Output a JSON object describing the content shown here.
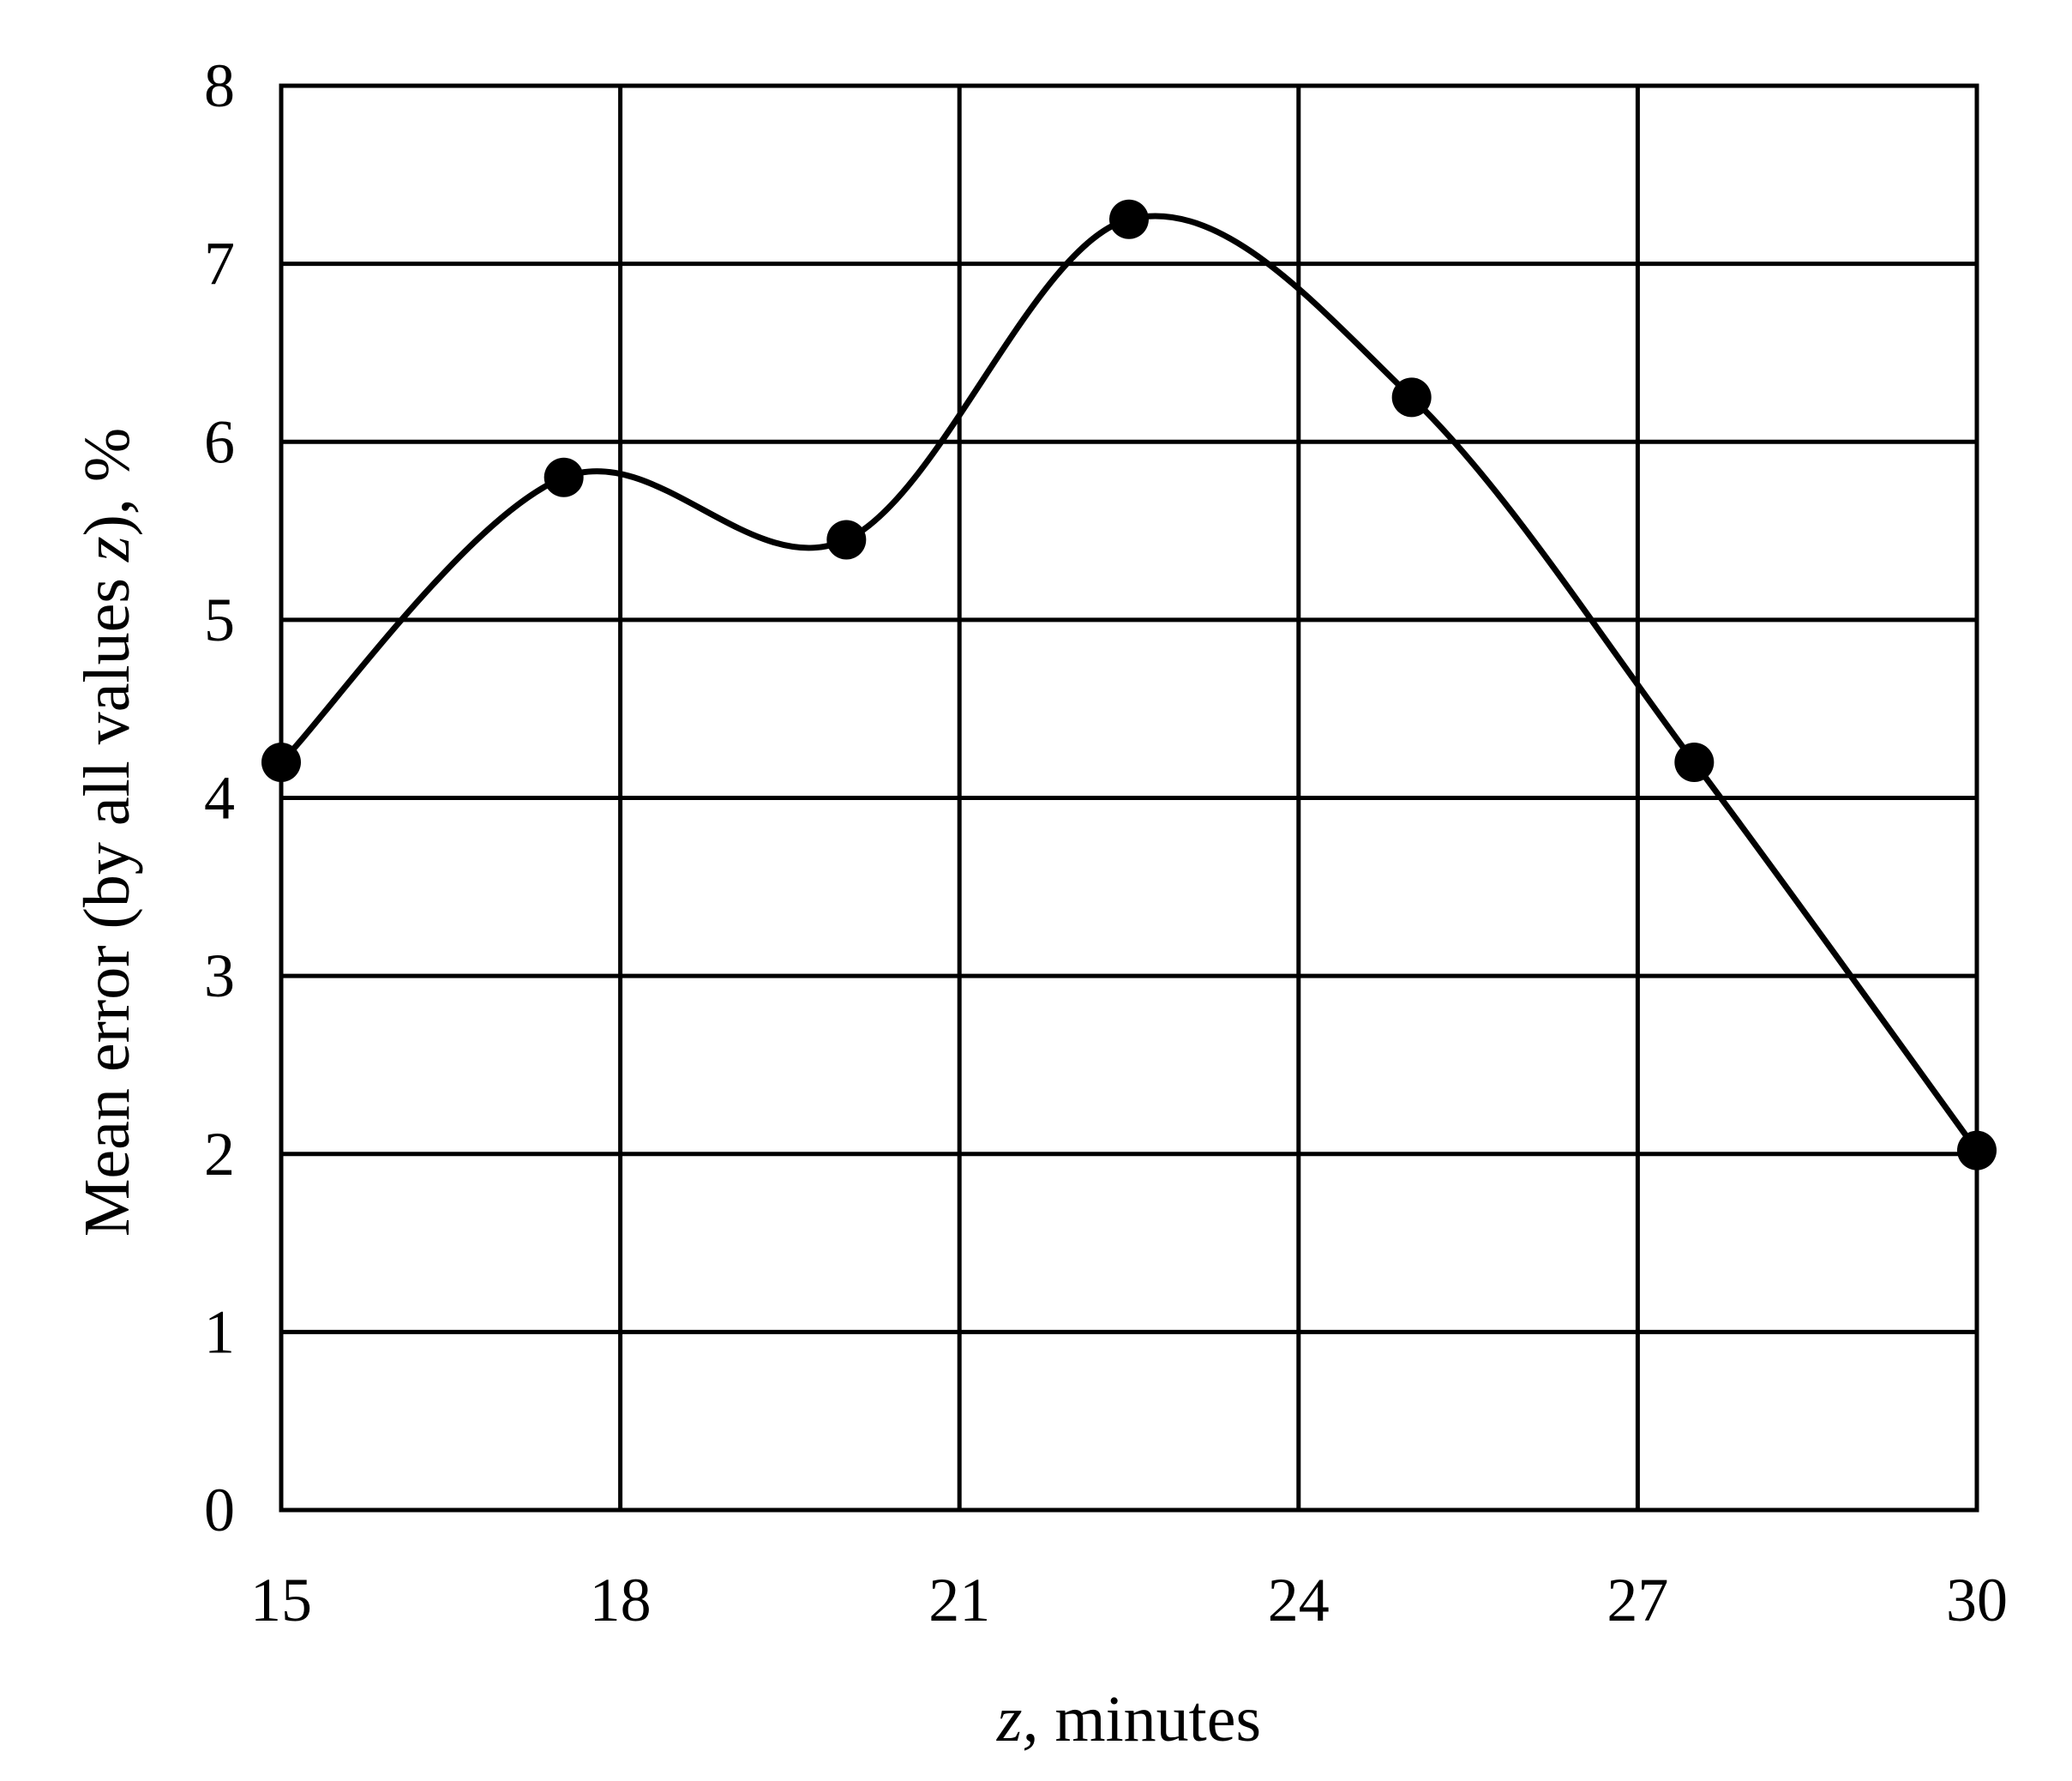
{
  "chart_data": {
    "type": "line",
    "title": "",
    "xlabel": {
      "var": "z,",
      "rest": " minutes"
    },
    "ylabel": {
      "before": "Mean error (by all values ",
      "var": "z",
      "after": "), %"
    },
    "xlim": [
      15,
      30
    ],
    "ylim": [
      0,
      8
    ],
    "xticks": [
      15,
      18,
      21,
      24,
      27,
      30
    ],
    "yticks": [
      0,
      1,
      2,
      3,
      4,
      5,
      6,
      7,
      8
    ],
    "grid": true,
    "legend": "none",
    "series": [
      {
        "x": [
          15,
          17.5,
          20,
          22.5,
          25,
          27.5,
          30
        ],
        "y": [
          4.2,
          5.8,
          5.45,
          7.25,
          6.25,
          4.2,
          2.02
        ]
      }
    ],
    "colors": {
      "line": "#000000",
      "marker": "#000000",
      "grid": "#000000"
    }
  }
}
